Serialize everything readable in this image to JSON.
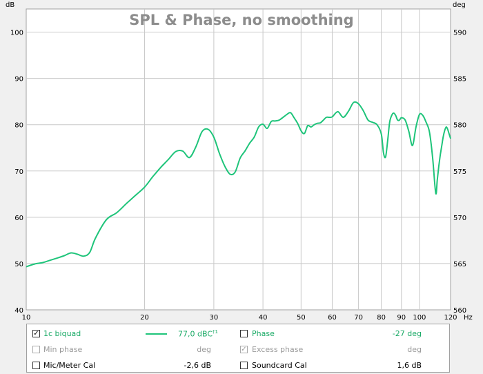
{
  "chart_data": {
    "type": "line",
    "title": "SPL & Phase, no smoothing",
    "y_unit_left": "dB",
    "y_unit_right": "deg",
    "x_unit": "Hz",
    "x_scale": "log",
    "xlim": [
      10,
      120
    ],
    "ylim": [
      40,
      105
    ],
    "y2lim": [
      560,
      592.5
    ],
    "grid": true,
    "x_ticks": [
      10,
      20,
      30,
      40,
      50,
      60,
      70,
      80,
      90,
      100,
      120
    ],
    "y_ticks": [
      40,
      50,
      60,
      70,
      80,
      90,
      100
    ],
    "y2_ticks": [
      560,
      565,
      570,
      575,
      580,
      585,
      590
    ],
    "series": [
      {
        "name": "1c biquad",
        "color": "#1ec47a",
        "x": [
          10,
          10.5,
          11,
          11.5,
          12,
          12.5,
          13,
          13.5,
          14,
          14.5,
          15,
          16,
          17,
          18,
          19,
          20,
          21,
          22,
          23,
          24,
          25,
          26,
          27,
          28,
          29,
          30,
          31,
          32,
          33,
          34,
          35,
          36,
          37,
          38,
          39,
          40,
          41,
          42,
          43,
          44,
          45,
          46,
          47,
          48,
          49,
          50,
          51,
          52,
          53,
          54,
          55,
          56,
          57,
          58,
          59,
          60,
          62,
          64,
          66,
          68,
          70,
          72,
          74,
          76,
          78,
          80,
          81,
          82,
          83,
          84,
          85,
          86,
          87,
          88,
          89,
          90,
          92,
          94,
          96,
          98,
          100,
          102,
          104,
          106,
          108,
          110,
          111,
          112,
          113,
          114,
          115,
          116,
          117,
          118,
          119,
          120
        ],
        "values": [
          49.3,
          49.9,
          50.2,
          50.7,
          51.2,
          51.7,
          52.3,
          52.0,
          51.6,
          52.4,
          55.5,
          59.5,
          61.0,
          63.0,
          64.8,
          66.5,
          68.8,
          70.8,
          72.5,
          74.2,
          74.3,
          72.9,
          75.2,
          78.5,
          79.0,
          77.3,
          73.8,
          71.0,
          69.3,
          69.8,
          72.8,
          74.3,
          76.0,
          77.3,
          79.5,
          80.1,
          79.2,
          80.7,
          80.8,
          81.0,
          81.6,
          82.2,
          82.6,
          81.5,
          80.3,
          78.7,
          78.1,
          79.8,
          79.5,
          80.0,
          80.3,
          80.4,
          81.0,
          81.6,
          81.6,
          81.7,
          82.8,
          81.6,
          82.9,
          84.8,
          84.5,
          83.0,
          81.0,
          80.5,
          80.0,
          78.0,
          74.0,
          73.0,
          76.5,
          80.5,
          82.0,
          82.5,
          82.0,
          81.0,
          81.0,
          81.5,
          81.0,
          78.5,
          75.5,
          79.5,
          82.2,
          82.0,
          80.5,
          78.5,
          73.0,
          65.2,
          68.0,
          71.0,
          73.5,
          75.5,
          77.5,
          78.8,
          79.5,
          79.0,
          78.0,
          77.0
        ]
      }
    ]
  },
  "legend": {
    "row1": {
      "name": "1c biquad",
      "value": "77,0 dBC",
      "sup": "†1",
      "checked": true,
      "phase_label": "Phase",
      "phase_value": "-27 deg",
      "phase_checked": false
    },
    "row2": {
      "name": "Min phase",
      "value": "deg",
      "checked": false,
      "excess_label": "Excess phase",
      "excess_value": "deg",
      "excess_checked": true
    },
    "row3": {
      "name": "Mic/Meter Cal",
      "value": "-2,6 dB",
      "checked": false,
      "sc_label": "Soundcard Cal",
      "sc_value": "1,6 dB",
      "sc_checked": false
    }
  }
}
